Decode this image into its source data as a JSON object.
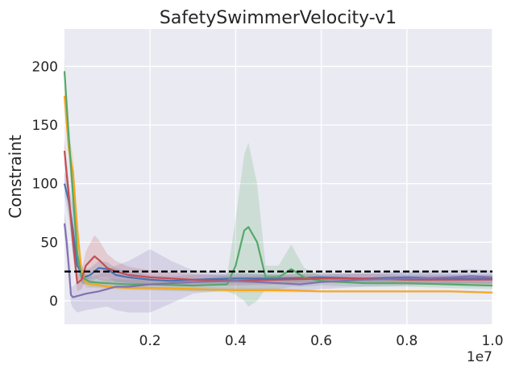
{
  "chart_data": {
    "type": "line",
    "title": "SafetySwimmerVelocity-v1",
    "xlabel": "",
    "ylabel": "Constraint",
    "x_offset_label": "1e7",
    "xlim": [
      0.0,
      1.0
    ],
    "ylim": [
      -20,
      232
    ],
    "x_ticks": [
      0.2,
      0.4,
      0.6,
      0.8,
      1.0
    ],
    "x_tick_labels": [
      "0.2",
      "0.4",
      "0.6",
      "0.8",
      "1.0"
    ],
    "y_ticks": [
      0,
      50,
      100,
      150,
      200
    ],
    "y_tick_labels": [
      "0",
      "50",
      "100",
      "150",
      "200"
    ],
    "grid": true,
    "threshold": {
      "value": 25,
      "style": "dashed",
      "color": "#000000"
    },
    "series": [
      {
        "name": "blue",
        "color": "#4c72b0",
        "x": [
          0.0,
          0.01,
          0.02,
          0.03,
          0.045,
          0.06,
          0.08,
          0.1,
          0.12,
          0.15,
          0.2,
          0.25,
          0.3,
          0.4,
          0.5,
          0.6,
          0.7,
          0.8,
          0.9,
          1.0
        ],
        "y": [
          100,
          85,
          60,
          30,
          20,
          22,
          28,
          27,
          22,
          20,
          18,
          17,
          18,
          19,
          19,
          20,
          19,
          20,
          19,
          19
        ],
        "lower": [
          90,
          70,
          40,
          18,
          14,
          16,
          20,
          20,
          16,
          15,
          14,
          13,
          14,
          15,
          15,
          16,
          15,
          16,
          15,
          15
        ],
        "upper": [
          110,
          100,
          80,
          42,
          26,
          28,
          34,
          33,
          28,
          25,
          22,
          21,
          22,
          23,
          23,
          24,
          23,
          24,
          23,
          23
        ]
      },
      {
        "name": "orange",
        "color": "#f5a623",
        "x": [
          0.0,
          0.01,
          0.02,
          0.03,
          0.04,
          0.05,
          0.07,
          0.1,
          0.15,
          0.2,
          0.3,
          0.4,
          0.5,
          0.6,
          0.7,
          0.8,
          0.9,
          1.0
        ],
        "y": [
          175,
          130,
          110,
          60,
          25,
          15,
          14,
          12,
          11,
          11,
          10,
          9,
          9,
          8,
          8,
          8,
          8,
          7
        ],
        "lower": [
          165,
          120,
          95,
          45,
          18,
          11,
          11,
          10,
          9,
          9,
          8,
          7,
          7,
          7,
          7,
          7,
          7,
          6
        ],
        "upper": [
          185,
          140,
          125,
          75,
          32,
          19,
          17,
          14,
          13,
          13,
          12,
          11,
          11,
          9,
          9,
          9,
          9,
          8
        ]
      },
      {
        "name": "green",
        "color": "#55a868",
        "x": [
          0.0,
          0.01,
          0.02,
          0.03,
          0.04,
          0.06,
          0.1,
          0.15,
          0.2,
          0.3,
          0.38,
          0.4,
          0.42,
          0.43,
          0.45,
          0.47,
          0.5,
          0.53,
          0.56,
          0.6,
          0.7,
          0.8,
          0.9,
          1.0
        ],
        "y": [
          196,
          140,
          90,
          40,
          20,
          16,
          15,
          14,
          14,
          13,
          14,
          30,
          60,
          63,
          50,
          20,
          20,
          27,
          20,
          17,
          15,
          15,
          14,
          13
        ],
        "lower": [
          186,
          125,
          70,
          28,
          15,
          12,
          11,
          10,
          9,
          8,
          8,
          5,
          0,
          -5,
          0,
          10,
          10,
          12,
          12,
          13,
          12,
          12,
          11,
          10
        ],
        "upper": [
          206,
          155,
          110,
          52,
          25,
          20,
          19,
          18,
          18,
          18,
          22,
          70,
          125,
          135,
          100,
          30,
          30,
          48,
          28,
          21,
          18,
          18,
          17,
          16
        ]
      },
      {
        "name": "red",
        "color": "#c44e52",
        "x": [
          0.0,
          0.01,
          0.02,
          0.03,
          0.04,
          0.05,
          0.07,
          0.08,
          0.1,
          0.12,
          0.15,
          0.2,
          0.3,
          0.4,
          0.5,
          0.6,
          0.7,
          0.8,
          0.9,
          1.0
        ],
        "y": [
          128,
          90,
          50,
          15,
          18,
          30,
          38,
          35,
          28,
          25,
          22,
          20,
          18,
          17,
          18,
          19,
          19,
          18,
          18,
          18
        ],
        "lower": [
          118,
          78,
          38,
          8,
          10,
          18,
          20,
          18,
          16,
          16,
          15,
          14,
          13,
          13,
          14,
          15,
          15,
          14,
          14,
          14
        ],
        "upper": [
          138,
          102,
          62,
          22,
          26,
          42,
          56,
          52,
          40,
          34,
          29,
          26,
          23,
          21,
          22,
          23,
          23,
          22,
          22,
          22
        ]
      },
      {
        "name": "purple",
        "color": "#8172b2",
        "x": [
          0.0,
          0.005,
          0.01,
          0.015,
          0.02,
          0.03,
          0.05,
          0.08,
          0.1,
          0.12,
          0.15,
          0.2,
          0.25,
          0.3,
          0.4,
          0.5,
          0.55,
          0.6,
          0.7,
          0.8,
          0.9,
          0.95,
          1.0
        ],
        "y": [
          66,
          50,
          30,
          5,
          3,
          4,
          6,
          8,
          10,
          12,
          12,
          14,
          15,
          16,
          17,
          15,
          14,
          16,
          18,
          19,
          20,
          21,
          20
        ],
        "lower": [
          56,
          38,
          18,
          -2,
          -6,
          -10,
          -8,
          -6,
          -5,
          -8,
          -10,
          -10,
          -2,
          6,
          10,
          8,
          8,
          10,
          12,
          13,
          14,
          15,
          14
        ],
        "upper": [
          76,
          62,
          42,
          12,
          12,
          16,
          20,
          22,
          26,
          30,
          34,
          44,
          34,
          26,
          24,
          22,
          20,
          22,
          24,
          25,
          26,
          27,
          26
        ]
      }
    ]
  }
}
